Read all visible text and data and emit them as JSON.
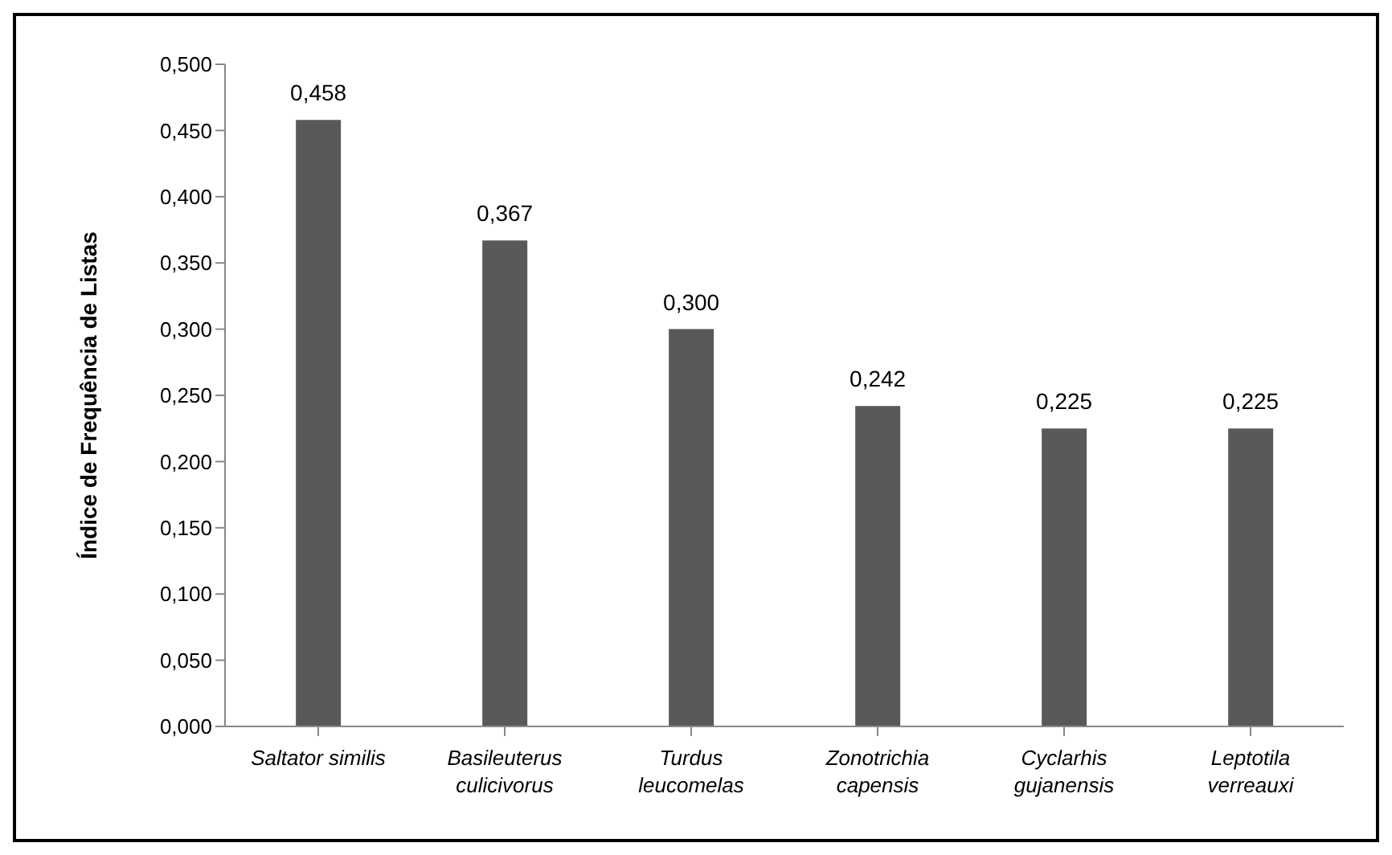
{
  "chart_data": {
    "type": "bar",
    "ylabel": "Índice de Frequência de Listas",
    "categories": [
      "Saltator similis",
      "Basileuterus culicivorus",
      "Turdus leucomelas",
      "Zonotrichia capensis",
      "Cyclarhis gujanensis",
      "Leptotila verreauxi"
    ],
    "values": [
      0.458,
      0.367,
      0.3,
      0.242,
      0.225,
      0.225
    ],
    "value_labels": [
      "0,458",
      "0,367",
      "0,300",
      "0,242",
      "0,225",
      "0,225"
    ],
    "color": "#595959",
    "ylim": [
      0,
      0.5
    ],
    "yticks": [
      {
        "value": 0,
        "label": "0,000"
      },
      {
        "value": 0.05,
        "label": "0,050"
      },
      {
        "value": 0.1,
        "label": "0,100"
      },
      {
        "value": 0.15,
        "label": "0,150"
      },
      {
        "value": 0.2,
        "label": "0,200"
      },
      {
        "value": 0.25,
        "label": "0,250"
      },
      {
        "value": 0.3,
        "label": "0,300"
      },
      {
        "value": 0.35,
        "label": "0,350"
      },
      {
        "value": 0.4,
        "label": "0,400"
      },
      {
        "value": 0.45,
        "label": "0,450"
      },
      {
        "value": 0.5,
        "label": "0,500"
      }
    ],
    "grid": false,
    "legend": false
  }
}
